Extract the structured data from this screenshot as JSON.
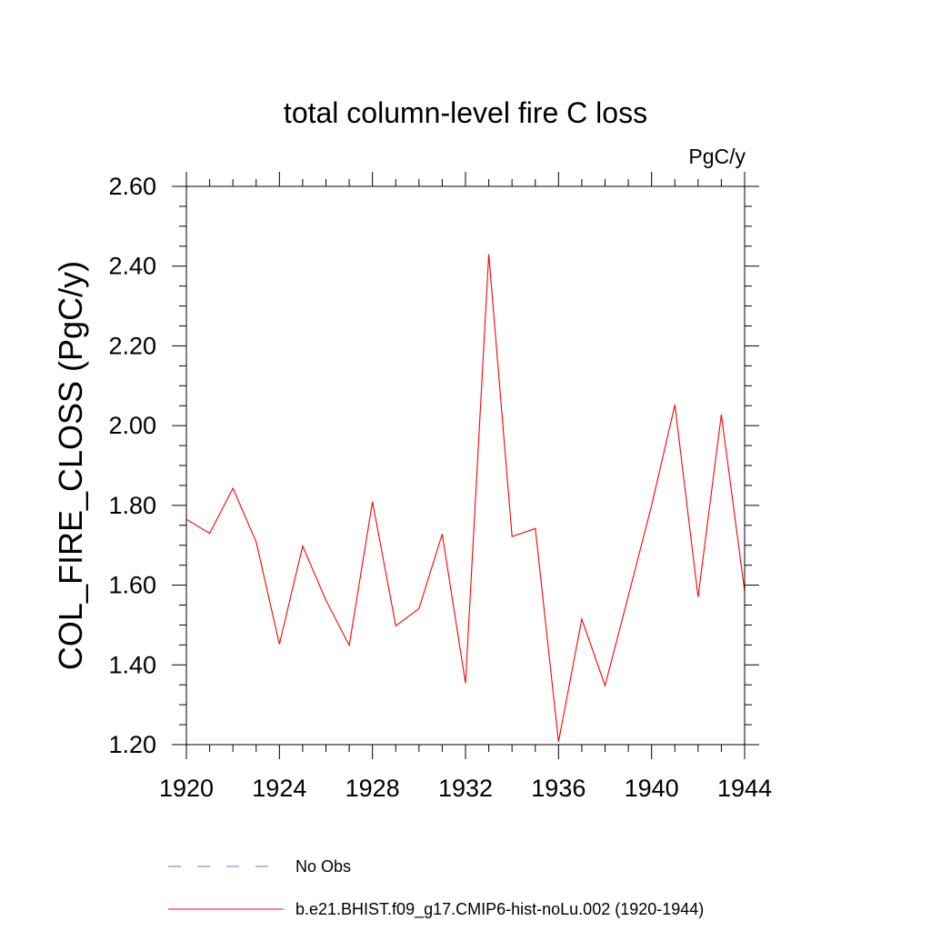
{
  "chart_data": {
    "type": "line",
    "title": "total column-level fire C loss",
    "units_label": "PgC/y",
    "xlabel": "",
    "ylabel": "COL_FIRE_CLOSS  (PgC/y)",
    "xlim": [
      1920,
      1944
    ],
    "ylim": [
      1.2,
      2.6
    ],
    "x_ticks": [
      1920,
      1924,
      1928,
      1932,
      1936,
      1940,
      1944
    ],
    "x_tick_labels": [
      "1920",
      "1924",
      "1928",
      "1932",
      "1936",
      "1940",
      "1944"
    ],
    "y_ticks": [
      1.2,
      1.4,
      1.6,
      1.8,
      2.0,
      2.2,
      2.4,
      2.6
    ],
    "y_tick_labels": [
      "1.20",
      "1.40",
      "1.60",
      "1.80",
      "2.00",
      "2.20",
      "2.40",
      "2.60"
    ],
    "grid": false,
    "legend_position": "bottom",
    "series": [
      {
        "name": "b.e21.BHIST.f09_g17.CMIP6-hist-noLu.002 (1920-1944)",
        "color": "#ff0000",
        "style": "solid",
        "x": [
          1920,
          1921,
          1922,
          1923,
          1924,
          1925,
          1926,
          1927,
          1928,
          1929,
          1930,
          1931,
          1932,
          1933,
          1934,
          1935,
          1936,
          1937,
          1938,
          1939,
          1940,
          1941,
          1942,
          1943,
          1944
        ],
        "y": [
          1.765,
          1.73,
          1.843,
          1.708,
          1.452,
          1.698,
          1.562,
          1.449,
          1.809,
          1.498,
          1.541,
          1.728,
          1.354,
          2.43,
          1.722,
          1.742,
          1.207,
          1.515,
          1.348,
          1.573,
          1.8,
          2.052,
          1.57,
          2.028,
          1.585
        ]
      }
    ],
    "legend": [
      {
        "label": "No Obs",
        "color": "#7070c8",
        "style": "dashed"
      },
      {
        "label": "b.e21.BHIST.f09_g17.CMIP6-hist-noLu.002 (1920-1944)",
        "color": "#ff0000",
        "style": "solid"
      }
    ]
  }
}
